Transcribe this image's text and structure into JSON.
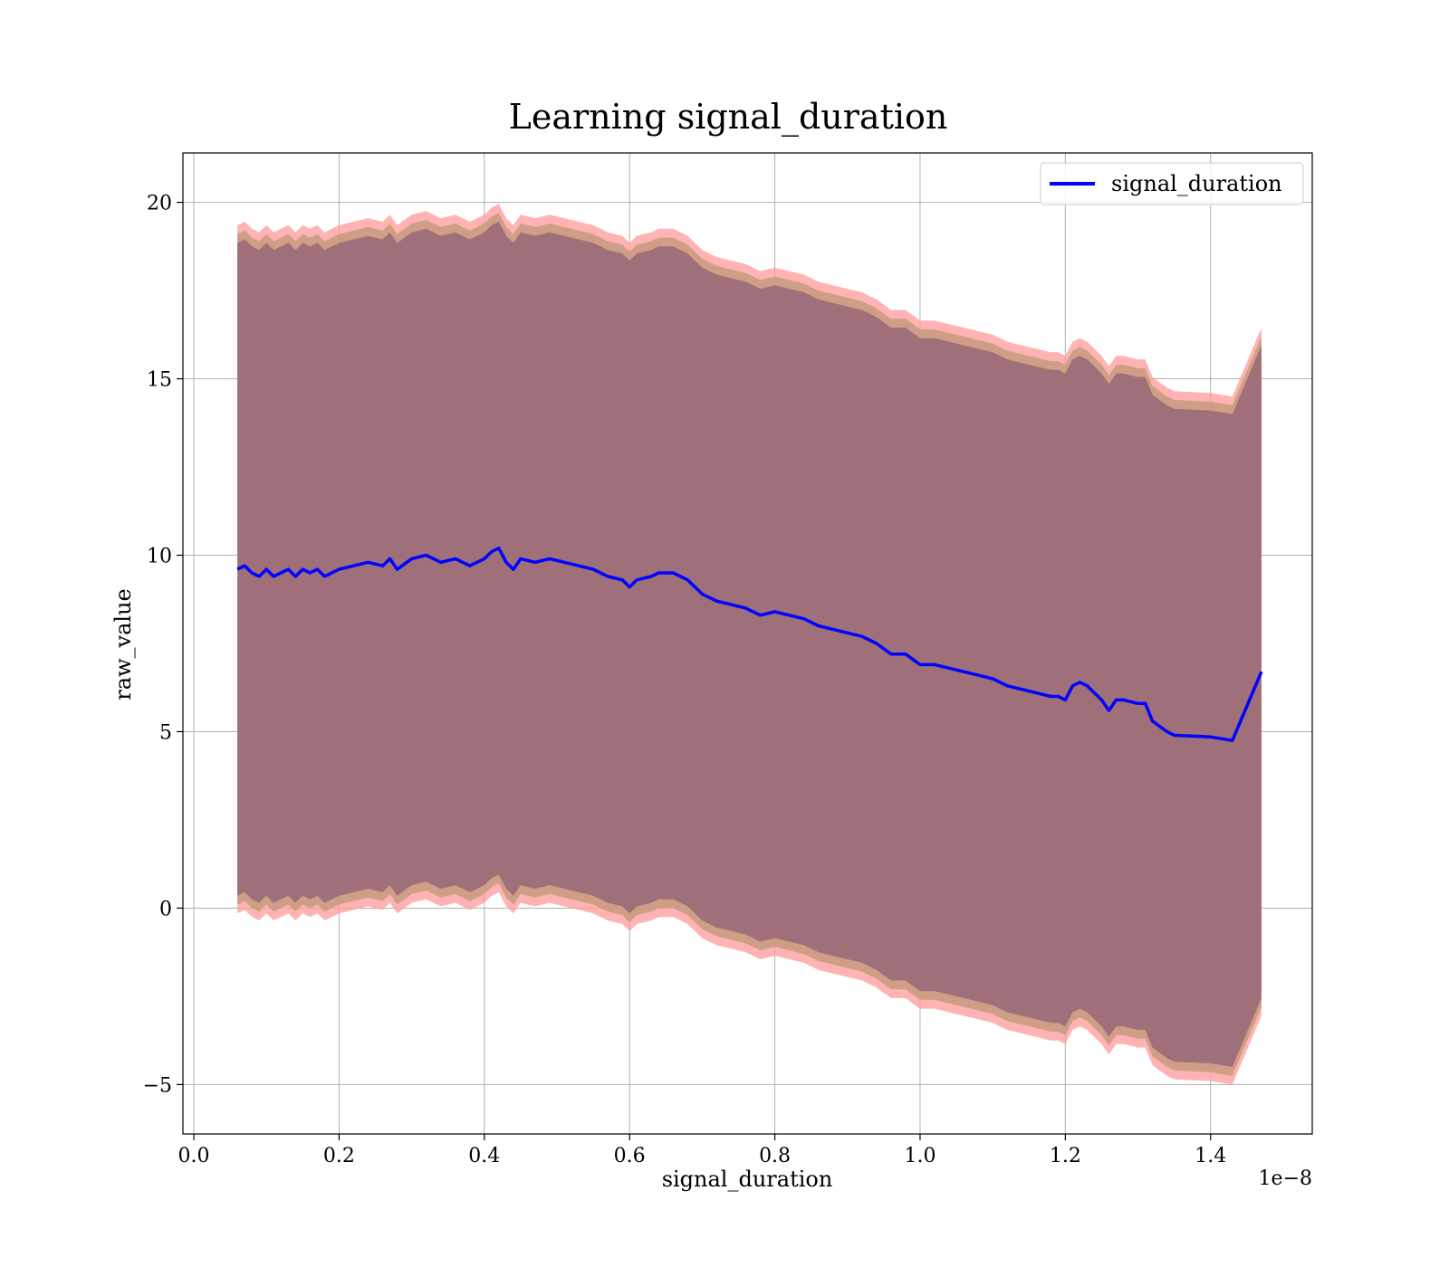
{
  "chart_data": {
    "type": "area",
    "title": "Learning signal_duration",
    "xlabel": "signal_duration",
    "ylabel": "raw_value",
    "x_offset_label": "1e−8",
    "xlim": [
      -0.015,
      1.54
    ],
    "ylim": [
      -6.4,
      21.4
    ],
    "xticks": [
      0.0,
      0.2,
      0.4,
      0.6,
      0.8,
      1.0,
      1.2,
      1.4
    ],
    "xtick_labels": [
      "0.0",
      "0.2",
      "0.4",
      "0.6",
      "0.8",
      "1.0",
      "1.2",
      "1.4"
    ],
    "yticks": [
      -5,
      0,
      5,
      10,
      15,
      20
    ],
    "ytick_labels": [
      "−5",
      "0",
      "5",
      "10",
      "15",
      "20"
    ],
    "grid": true,
    "legend": {
      "placement": "top-right",
      "entries": [
        "signal_duration"
      ]
    },
    "colors": {
      "line": "#0000ff",
      "band_outer": "#ff9a9a",
      "band_middle": "#c69a7e",
      "band_inner": "#a0707a"
    },
    "band_widths": {
      "outer": 9.75,
      "middle": 9.5,
      "inner": 9.25
    },
    "series": [
      {
        "name": "signal_duration",
        "x": [
          0.06,
          0.07,
          0.08,
          0.09,
          0.1,
          0.11,
          0.12,
          0.13,
          0.14,
          0.15,
          0.16,
          0.17,
          0.18,
          0.19,
          0.2,
          0.22,
          0.24,
          0.26,
          0.27,
          0.28,
          0.3,
          0.32,
          0.34,
          0.36,
          0.38,
          0.4,
          0.41,
          0.42,
          0.43,
          0.44,
          0.45,
          0.47,
          0.49,
          0.51,
          0.53,
          0.55,
          0.57,
          0.59,
          0.6,
          0.61,
          0.63,
          0.64,
          0.66,
          0.68,
          0.7,
          0.72,
          0.74,
          0.76,
          0.78,
          0.8,
          0.82,
          0.84,
          0.86,
          0.88,
          0.9,
          0.92,
          0.94,
          0.96,
          0.98,
          1.0,
          1.02,
          1.04,
          1.06,
          1.08,
          1.1,
          1.12,
          1.14,
          1.16,
          1.18,
          1.19,
          1.2,
          1.21,
          1.22,
          1.23,
          1.24,
          1.25,
          1.26,
          1.27,
          1.28,
          1.3,
          1.31,
          1.32,
          1.34,
          1.35,
          1.4,
          1.43,
          1.47
        ],
        "y": [
          9.6,
          9.7,
          9.5,
          9.4,
          9.6,
          9.4,
          9.5,
          9.6,
          9.4,
          9.6,
          9.5,
          9.6,
          9.4,
          9.5,
          9.6,
          9.7,
          9.8,
          9.7,
          9.9,
          9.6,
          9.9,
          10.0,
          9.8,
          9.9,
          9.7,
          9.9,
          10.1,
          10.2,
          9.8,
          9.6,
          9.9,
          9.8,
          9.9,
          9.8,
          9.7,
          9.6,
          9.4,
          9.3,
          9.1,
          9.3,
          9.4,
          9.5,
          9.5,
          9.3,
          8.9,
          8.7,
          8.6,
          8.5,
          8.3,
          8.4,
          8.3,
          8.2,
          8.0,
          7.9,
          7.8,
          7.7,
          7.5,
          7.2,
          7.2,
          6.9,
          6.9,
          6.8,
          6.7,
          6.6,
          6.5,
          6.3,
          6.2,
          6.1,
          6.0,
          6.0,
          5.9,
          6.3,
          6.4,
          6.3,
          6.1,
          5.9,
          5.6,
          5.9,
          5.9,
          5.8,
          5.8,
          5.3,
          5.0,
          4.9,
          4.85,
          4.75,
          6.7
        ]
      }
    ]
  }
}
